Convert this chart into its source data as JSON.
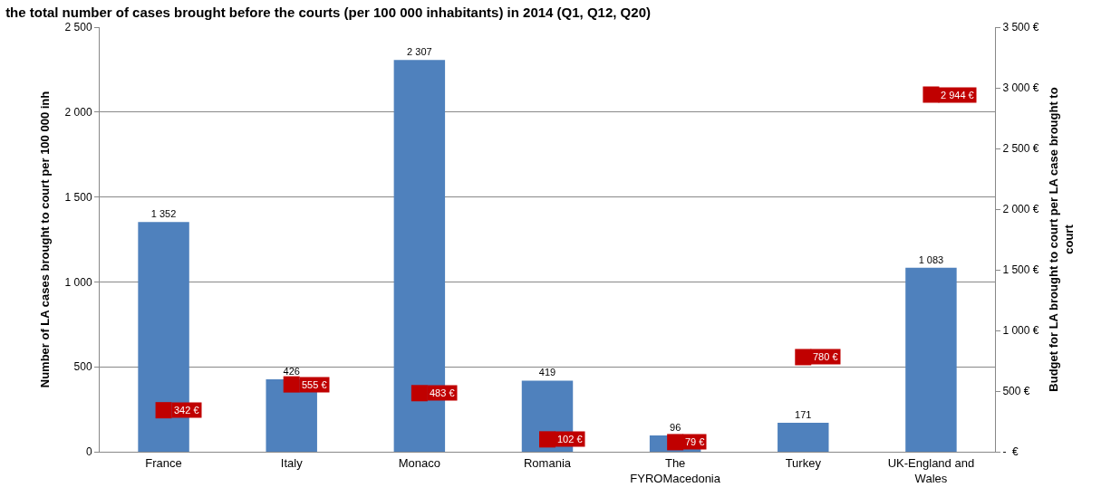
{
  "chart_data": {
    "type": "bar",
    "title": "the total number of cases brought before the courts (per 100 000 inhabitants) in 2014 (Q1, Q12, Q20)",
    "categories": [
      "France",
      "Italy",
      "Monaco",
      "Romania",
      "The FYROMacedonia",
      "Turkey",
      "UK-England and Wales"
    ],
    "ylabel": "Number of LA cases brought to court per 100 000 inh",
    "y2label": "Budget for LA brought to court per LA case brought to court",
    "series": [
      {
        "color": "#4f81bd",
        "values": [
          1352,
          426,
          2307,
          419,
          96,
          171,
          1083
        ],
        "value_labels": [
          "1 352",
          "426",
          "2 307",
          "419",
          "96",
          "171",
          "1 083"
        ]
      },
      {
        "type": "scatter",
        "axis": "y2",
        "marker": "square",
        "color": "#c00000",
        "values": [
          342,
          555,
          483,
          102,
          79,
          780,
          2944
        ],
        "value_labels": [
          "342 €",
          "555 €",
          "483 €",
          "102 €",
          "79 €",
          "780 €",
          "2 944 €"
        ]
      }
    ],
    "ylim": [
      0,
      2500
    ],
    "yticks": [
      0,
      500,
      {
        "value": 1000,
        "label": "1 000"
      },
      {
        "value": 1500,
        "label": "1 500"
      },
      {
        "value": 2000,
        "label": "2 000"
      },
      {
        "value": 2500,
        "label": "2 500"
      }
    ],
    "y2lim": [
      0,
      3500
    ],
    "y2ticks": [
      {
        "value": 0,
        "label": "-  €"
      },
      {
        "value": 500,
        "label": "500 €"
      },
      {
        "value": 1000,
        "label": "1 000 €"
      },
      {
        "value": 1500,
        "label": "1 500 €"
      },
      {
        "value": 2000,
        "label": "2 000 €"
      },
      {
        "value": 2500,
        "label": "2 500 €"
      },
      {
        "value": 3000,
        "label": "3 000 €"
      },
      {
        "value": 3500,
        "label": "3 500 €"
      }
    ],
    "grid": "y"
  }
}
